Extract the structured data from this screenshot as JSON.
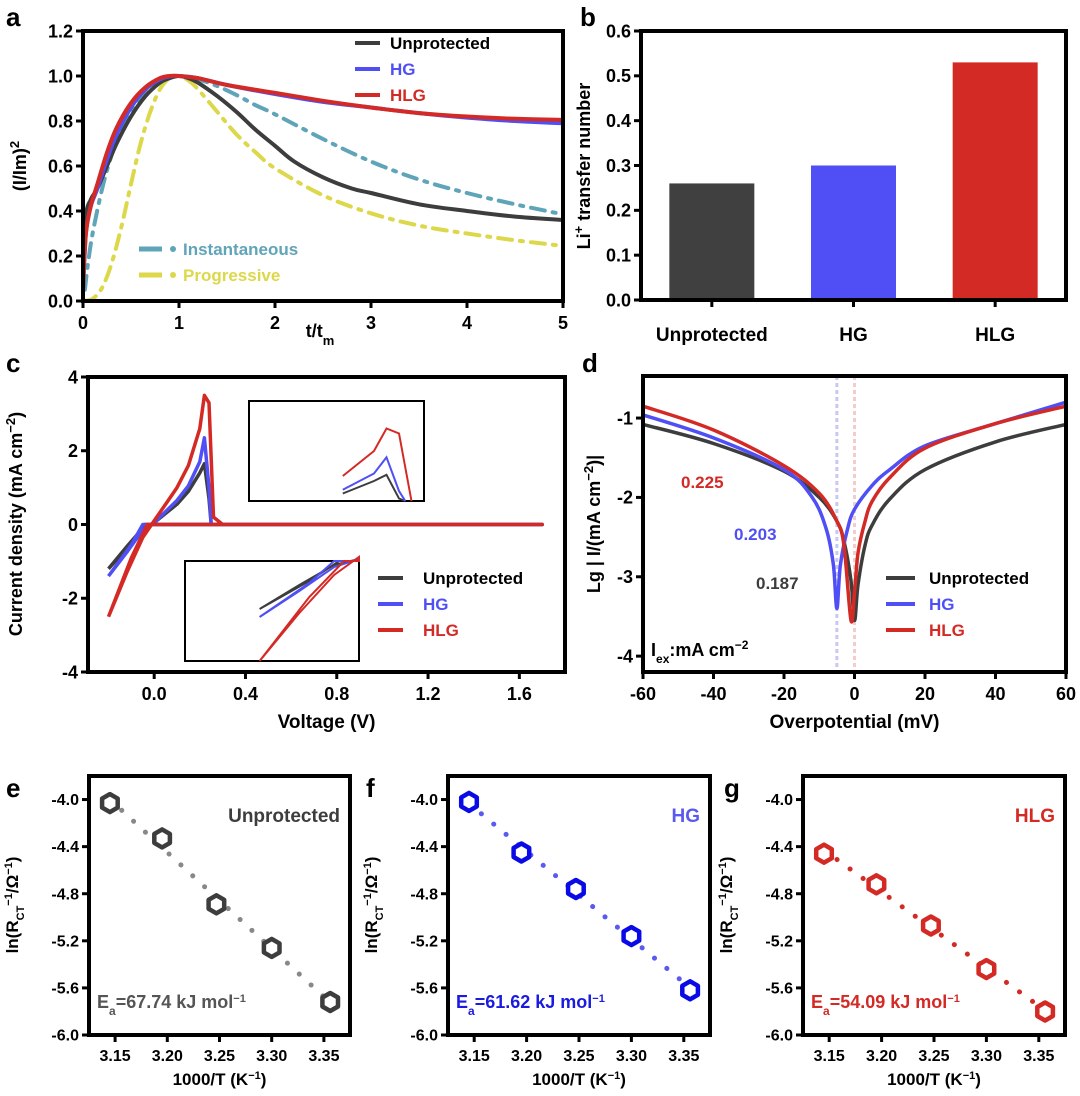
{
  "chart_data": [
    {
      "id": "a",
      "panel_label": "a",
      "type": "line",
      "xlabel": "t/t",
      "xlabel_sub": "m",
      "ylabel": "(I/Im)",
      "ylabel_sup": "2",
      "xlim": [
        0,
        5
      ],
      "ylim": [
        0,
        1.2
      ],
      "xticks": [
        0,
        1,
        2,
        3,
        4,
        5
      ],
      "xtick_labels": [
        "0",
        "1",
        "2",
        "3",
        "4",
        "5"
      ],
      "yticks": [
        0,
        0.2,
        0.4,
        0.6,
        0.8,
        1.0,
        1.2
      ],
      "ytick_labels": [
        "0.0",
        "0.2",
        "0.4",
        "0.6",
        "0.8",
        "1.0",
        "1.2"
      ],
      "legend_position": "top-right",
      "legend2_position": "bottom-left",
      "series": [
        {
          "name": "Instantaneous",
          "color": "#5fa4b8",
          "style": "dashdot",
          "legend": 2,
          "x": [
            0.02,
            0.05,
            0.1,
            0.2,
            0.3,
            0.4,
            0.5,
            0.6,
            0.7,
            0.8,
            0.9,
            1.0,
            1.2,
            1.4,
            1.6,
            1.8,
            2.0,
            2.5,
            3.0,
            3.5,
            4.0,
            4.5,
            5.0
          ],
          "y": [
            0.05,
            0.16,
            0.3,
            0.5,
            0.65,
            0.76,
            0.85,
            0.91,
            0.96,
            0.985,
            0.997,
            1.0,
            0.985,
            0.955,
            0.915,
            0.87,
            0.83,
            0.72,
            0.62,
            0.54,
            0.48,
            0.43,
            0.385
          ]
        },
        {
          "name": "Progressive",
          "color": "#dcd84a",
          "style": "dashdot",
          "legend": 2,
          "x": [
            0.0,
            0.1,
            0.2,
            0.3,
            0.4,
            0.5,
            0.6,
            0.7,
            0.8,
            0.9,
            1.0,
            1.1,
            1.2,
            1.4,
            1.6,
            1.8,
            2.0,
            2.5,
            3.0,
            3.5,
            4.0,
            4.5,
            5.0
          ],
          "y": [
            0.0,
            0.01,
            0.06,
            0.17,
            0.33,
            0.52,
            0.7,
            0.84,
            0.94,
            0.99,
            1.0,
            0.98,
            0.94,
            0.84,
            0.74,
            0.66,
            0.59,
            0.47,
            0.39,
            0.335,
            0.3,
            0.27,
            0.245
          ]
        },
        {
          "name": "Unprotected",
          "color": "#3d3d3d",
          "style": "solid",
          "legend": 1,
          "x": [
            0.0,
            0.03,
            0.08,
            0.15,
            0.25,
            0.35,
            0.5,
            0.65,
            0.8,
            0.9,
            1.0,
            1.1,
            1.2,
            1.4,
            1.6,
            1.8,
            2.0,
            2.2,
            2.5,
            2.8,
            3.0,
            3.5,
            4.0,
            4.5,
            5.0
          ],
          "y": [
            0.05,
            0.37,
            0.45,
            0.5,
            0.6,
            0.7,
            0.82,
            0.91,
            0.97,
            0.99,
            1.0,
            0.99,
            0.97,
            0.91,
            0.84,
            0.76,
            0.69,
            0.62,
            0.55,
            0.5,
            0.48,
            0.43,
            0.4,
            0.375,
            0.36
          ]
        },
        {
          "name": "HG",
          "color": "#4f4ff5",
          "style": "solid",
          "legend": 1,
          "x": [
            0.0,
            0.03,
            0.08,
            0.15,
            0.25,
            0.35,
            0.5,
            0.65,
            0.8,
            0.9,
            1.0,
            1.2,
            1.5,
            2.0,
            2.5,
            3.0,
            3.5,
            4.0,
            4.5,
            5.0
          ],
          "y": [
            0.05,
            0.3,
            0.42,
            0.5,
            0.63,
            0.74,
            0.86,
            0.94,
            0.985,
            0.998,
            1.0,
            0.99,
            0.96,
            0.92,
            0.885,
            0.86,
            0.835,
            0.815,
            0.8,
            0.79
          ]
        },
        {
          "name": "HLG",
          "color": "#d42a25",
          "style": "solid",
          "legend": 1,
          "x": [
            0.0,
            0.03,
            0.08,
            0.15,
            0.25,
            0.35,
            0.5,
            0.65,
            0.8,
            0.9,
            1.0,
            1.2,
            1.5,
            2.0,
            2.5,
            3.0,
            3.5,
            4.0,
            4.5,
            5.0
          ],
          "y": [
            0.05,
            0.3,
            0.42,
            0.52,
            0.66,
            0.77,
            0.88,
            0.95,
            0.99,
            1.0,
            1.0,
            0.99,
            0.96,
            0.925,
            0.89,
            0.86,
            0.835,
            0.82,
            0.81,
            0.805
          ]
        }
      ]
    },
    {
      "id": "b",
      "panel_label": "b",
      "type": "bar",
      "categories": [
        "Unprotected",
        "HG",
        "HLG"
      ],
      "values": [
        0.26,
        0.3,
        0.53
      ],
      "colors": [
        "#404040",
        "#4f4ff5",
        "#d42a25"
      ],
      "ylabel": "Li",
      "ylabel_sup": "+",
      "ylabel_rest": " transfer number",
      "ylim": [
        0,
        0.6
      ],
      "yticks": [
        0,
        0.1,
        0.2,
        0.3,
        0.4,
        0.5,
        0.6
      ],
      "ytick_labels": [
        "0.0",
        "0.1",
        "0.2",
        "0.3",
        "0.4",
        "0.5",
        "0.6"
      ]
    },
    {
      "id": "c",
      "panel_label": "c",
      "type": "line",
      "xlabel": "Voltage (V)",
      "ylabel": "Current density (mA cm",
      "ylabel_sup": "−2",
      "ylabel_end": ")",
      "xlim": [
        -0.29,
        1.8
      ],
      "ylim": [
        -4,
        4
      ],
      "xticks": [
        0.0,
        0.4,
        0.8,
        1.2,
        1.6
      ],
      "xtick_labels": [
        "0.0",
        "0.4",
        "0.8",
        "1.2",
        "1.6"
      ],
      "yticks": [
        -4,
        -2,
        0,
        2,
        4
      ],
      "ytick_labels": [
        "-4",
        "-2",
        "0",
        "2",
        "4"
      ],
      "legend_position": "lower-right",
      "insets": [
        "anodic peak zoom (upper)",
        "cathodic region zoom (lower)"
      ],
      "series": [
        {
          "name": "Unprotected",
          "color": "#3d3d3d",
          "x": [
            -0.2,
            -0.12,
            -0.05,
            0.0,
            0.05,
            0.1,
            0.15,
            0.2,
            0.22,
            0.24,
            0.25,
            0.3,
            1.7,
            0.3,
            0.1,
            0.0,
            -0.04,
            -0.1,
            -0.2
          ],
          "y": [
            -1.2,
            -0.6,
            -0.1,
            0.05,
            0.3,
            0.55,
            0.9,
            1.4,
            1.65,
            0.7,
            0.0,
            0.0,
            0.0,
            0.0,
            0.0,
            0.0,
            0.0,
            -0.5,
            -1.2
          ]
        },
        {
          "name": "HG",
          "color": "#4f4ff5",
          "x": [
            -0.2,
            -0.12,
            -0.05,
            0.0,
            0.05,
            0.1,
            0.15,
            0.2,
            0.22,
            0.24,
            0.25,
            0.3,
            1.7,
            0.3,
            0.1,
            0.0,
            -0.05,
            -0.1,
            -0.2
          ],
          "y": [
            -1.4,
            -0.75,
            -0.15,
            0.05,
            0.35,
            0.65,
            1.05,
            1.7,
            2.35,
            1.0,
            0.0,
            0.0,
            0.0,
            0.0,
            0.0,
            0.0,
            0.0,
            -0.55,
            -1.4
          ]
        },
        {
          "name": "HLG",
          "color": "#d42a25",
          "x": [
            -0.2,
            -0.12,
            -0.05,
            0.0,
            0.05,
            0.1,
            0.15,
            0.2,
            0.22,
            0.24,
            0.26,
            0.3,
            1.7,
            0.3,
            0.1,
            0.0,
            -0.03,
            -0.1,
            -0.2
          ],
          "y": [
            -2.5,
            -1.3,
            -0.35,
            0.1,
            0.55,
            1.0,
            1.6,
            2.6,
            3.5,
            3.3,
            0.2,
            0.0,
            0.0,
            0.0,
            0.0,
            0.0,
            0.0,
            -0.9,
            -2.5
          ]
        }
      ]
    },
    {
      "id": "d",
      "panel_label": "d",
      "type": "line",
      "xlabel": "Overpotential (mV)",
      "ylabel": "Lg | I/(mA cm",
      "ylabel_sup": "−2",
      "ylabel_end": ")|",
      "xlim": [
        -60,
        60
      ],
      "ylim": [
        -4.2,
        -0.47
      ],
      "xticks": [
        -60,
        -40,
        -20,
        0,
        20,
        40,
        60
      ],
      "xtick_labels": [
        "-60",
        "-40",
        "-20",
        "0",
        "20",
        "40",
        "60"
      ],
      "yticks": [
        -4,
        -3,
        -2,
        -1
      ],
      "ytick_labels": [
        "-4",
        "-3",
        "-2",
        "-1"
      ],
      "legend_position": "lower-right",
      "annotation_units": "I",
      "annotation_units_sub": "ex",
      "annotation_units_rest": ":mA cm",
      "annotation_units_sup": "−2",
      "reference_lines": [
        {
          "x": -5,
          "color": "#c8c8f5"
        },
        {
          "x": 0,
          "color": "#f5cccc"
        }
      ],
      "annotations": [
        {
          "text": "0.225",
          "color": "#d42a25"
        },
        {
          "text": "0.203",
          "color": "#4f4ff5"
        },
        {
          "text": "0.187",
          "color": "#3d3d3d"
        }
      ],
      "series": [
        {
          "name": "Unprotected",
          "color": "#3d3d3d",
          "min_x": 0,
          "min_y": -3.55,
          "x": [
            -60,
            -40,
            -20,
            -10,
            -5,
            -3,
            -1,
            0,
            1,
            3,
            5,
            10,
            20,
            40,
            60
          ],
          "y": [
            -1.08,
            -1.32,
            -1.67,
            -2.0,
            -2.3,
            -2.55,
            -3.05,
            -3.55,
            -3.1,
            -2.6,
            -2.35,
            -2.02,
            -1.65,
            -1.3,
            -1.08
          ]
        },
        {
          "name": "HG",
          "color": "#4f4ff5",
          "min_x": -5,
          "min_y": -3.4,
          "x": [
            -60,
            -40,
            -20,
            -12,
            -8,
            -6,
            -5,
            -4,
            -2,
            0,
            5,
            10,
            20,
            40,
            60
          ],
          "y": [
            -0.96,
            -1.25,
            -1.65,
            -2.0,
            -2.4,
            -2.85,
            -3.4,
            -2.85,
            -2.4,
            -2.15,
            -1.85,
            -1.65,
            -1.35,
            -1.07,
            -0.8
          ]
        },
        {
          "name": "HLG",
          "color": "#d42a25",
          "min_x": -1,
          "min_y": -3.55,
          "x": [
            -60,
            -40,
            -20,
            -10,
            -5,
            -3,
            -1,
            0,
            1,
            3,
            5,
            10,
            20,
            40,
            60
          ],
          "y": [
            -0.85,
            -1.15,
            -1.6,
            -1.95,
            -2.3,
            -2.6,
            -3.55,
            -3.2,
            -2.7,
            -2.3,
            -2.05,
            -1.75,
            -1.38,
            -1.07,
            -0.85
          ]
        }
      ]
    },
    {
      "id": "e",
      "panel_label": "e",
      "type": "scatter",
      "title": "Unprotected",
      "title_color": "#3d3d3d",
      "color": "#3d3d3d",
      "fit_color": "#888888",
      "annotation": "=67.74 kJ mol",
      "annotation_prefix": "E",
      "annotation_sub": "a",
      "annotation_sup": "−1",
      "annotation_color": "#555555",
      "x": [
        3.145,
        3.195,
        3.247,
        3.3,
        3.356
      ],
      "y": [
        -4.03,
        -4.33,
        -4.89,
        -5.26,
        -5.72
      ],
      "xlim": [
        3.125,
        3.375
      ],
      "ylim": [
        -6.0,
        -3.8
      ],
      "xticks": [
        3.15,
        3.2,
        3.25,
        3.3,
        3.35
      ],
      "xtick_labels": [
        "3.15",
        "3.20",
        "3.25",
        "3.30",
        "3.35"
      ],
      "yticks": [
        -6.0,
        -5.6,
        -5.2,
        -4.8,
        -4.4,
        -4.0
      ],
      "ytick_labels": [
        "-6.0",
        "-5.6",
        "-5.2",
        "-4.8",
        "-4.4",
        "-4.0"
      ],
      "xlabel": "1000/T (K",
      "xlabel_sup": "−1",
      "xlabel_end": ")",
      "ylabel": "ln(R",
      "ylabel_sub": "CT",
      "ylabel_sup": "−1",
      "ylabel_end": "/Ω",
      "ylabel_sup2": "−1",
      "ylabel_close": ")"
    },
    {
      "id": "f",
      "panel_label": "f",
      "type": "scatter",
      "title": "HG",
      "title_color": "#5a5af0",
      "color": "#0a0ae6",
      "fit_color": "#5a5af0",
      "annotation": "=61.62 kJ mol",
      "annotation_prefix": "E",
      "annotation_sub": "a",
      "annotation_sup": "−1",
      "annotation_color": "#1a1ae0",
      "x": [
        3.145,
        3.195,
        3.247,
        3.3,
        3.356
      ],
      "y": [
        -4.02,
        -4.45,
        -4.76,
        -5.16,
        -5.62
      ],
      "xlim": [
        3.125,
        3.375
      ],
      "ylim": [
        -6.0,
        -3.8
      ],
      "xticks": [
        3.15,
        3.2,
        3.25,
        3.3,
        3.35
      ],
      "xtick_labels": [
        "3.15",
        "3.20",
        "3.25",
        "3.30",
        "3.35"
      ],
      "yticks": [
        -6.0,
        -5.6,
        -5.2,
        -4.8,
        -4.4,
        -4.0
      ],
      "ytick_labels": [
        "-6.0",
        "-5.6",
        "-5.2",
        "-4.8",
        "-4.4",
        "-4.0"
      ],
      "xlabel": "1000/T (K",
      "xlabel_sup": "−1",
      "xlabel_end": ")",
      "ylabel": "ln(R",
      "ylabel_sub": "CT",
      "ylabel_sup": "−1",
      "ylabel_end": "/Ω",
      "ylabel_sup2": "−1",
      "ylabel_close": ")"
    },
    {
      "id": "g",
      "panel_label": "g",
      "type": "scatter",
      "title": "HLG",
      "title_color": "#d42a25",
      "color": "#d42a25",
      "fit_color": "#d42a25",
      "annotation": "=54.09 kJ mol",
      "annotation_prefix": "E",
      "annotation_sub": "a",
      "annotation_sup": "−1",
      "annotation_color": "#d42a25",
      "x": [
        3.145,
        3.195,
        3.247,
        3.3,
        3.356
      ],
      "y": [
        -4.46,
        -4.72,
        -5.07,
        -5.44,
        -5.8
      ],
      "xlim": [
        3.125,
        3.375
      ],
      "ylim": [
        -6.0,
        -3.8
      ],
      "xticks": [
        3.15,
        3.2,
        3.25,
        3.3,
        3.35
      ],
      "xtick_labels": [
        "3.15",
        "3.20",
        "3.25",
        "3.30",
        "3.35"
      ],
      "yticks": [
        -6.0,
        -5.6,
        -5.2,
        -4.8,
        -4.4,
        -4.0
      ],
      "ytick_labels": [
        "-6.0",
        "-5.6",
        "-5.2",
        "-4.8",
        "-4.4",
        "-4.0"
      ],
      "xlabel": "1000/T (K",
      "xlabel_sup": "−1",
      "xlabel_end": ")",
      "ylabel": "ln(R",
      "ylabel_sub": "CT",
      "ylabel_sup": "−1",
      "ylabel_end": "/Ω",
      "ylabel_sup2": "−1",
      "ylabel_close": ")"
    }
  ]
}
